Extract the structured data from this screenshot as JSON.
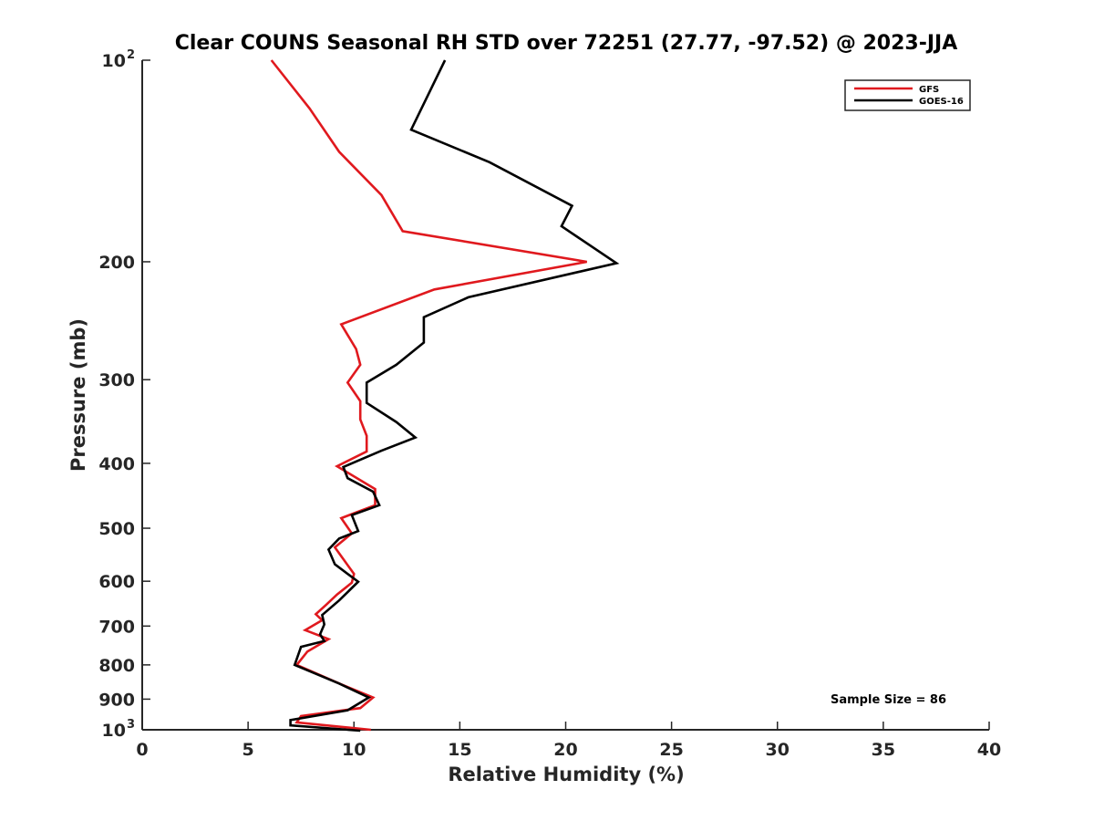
{
  "chart_data": {
    "type": "line",
    "orientation": "profile",
    "title": "Clear COUNS Seasonal RH STD over 72251 (27.77, -97.52) @ 2023-JJA",
    "xlabel": "Relative Humidity (%)",
    "ylabel": "Pressure (mb)",
    "xlim": [
      0,
      40
    ],
    "ylim": [
      100,
      1000
    ],
    "yscale": "log",
    "yreverse": true,
    "x_ticks": [
      0,
      5,
      10,
      15,
      20,
      25,
      30,
      35,
      40
    ],
    "y_ticks": [
      {
        "value": 100,
        "label": "10",
        "sup": "2"
      },
      {
        "value": 200,
        "label": "200",
        "sup": ""
      },
      {
        "value": 300,
        "label": "300",
        "sup": ""
      },
      {
        "value": 400,
        "label": "400",
        "sup": ""
      },
      {
        "value": 500,
        "label": "500",
        "sup": ""
      },
      {
        "value": 600,
        "label": "600",
        "sup": ""
      },
      {
        "value": 700,
        "label": "700",
        "sup": ""
      },
      {
        "value": 800,
        "label": "800",
        "sup": ""
      },
      {
        "value": 900,
        "label": "900",
        "sup": ""
      },
      {
        "value": 1000,
        "label": "10",
        "sup": "3"
      }
    ],
    "legend_position": "top-right",
    "series": [
      {
        "name": "GFS",
        "color": "#e0191e",
        "points": [
          [
            6.1,
            100
          ],
          [
            7.9,
            118
          ],
          [
            9.3,
            137
          ],
          [
            11.3,
            159
          ],
          [
            12.3,
            180
          ],
          [
            21.0,
            200
          ],
          [
            13.8,
            220
          ],
          [
            9.4,
            248
          ],
          [
            10.1,
            270
          ],
          [
            10.3,
            285
          ],
          [
            9.7,
            303
          ],
          [
            10.3,
            323
          ],
          [
            10.3,
            344
          ],
          [
            10.6,
            364
          ],
          [
            10.6,
            384
          ],
          [
            9.2,
            404
          ],
          [
            11.0,
            437
          ],
          [
            11.0,
            462
          ],
          [
            9.4,
            483
          ],
          [
            9.9,
            509
          ],
          [
            9.1,
            534
          ],
          [
            9.6,
            562
          ],
          [
            10.0,
            585
          ],
          [
            9.9,
            603
          ],
          [
            9.2,
            628
          ],
          [
            8.7,
            650
          ],
          [
            8.2,
            672
          ],
          [
            8.5,
            686
          ],
          [
            7.7,
            710
          ],
          [
            8.8,
            732
          ],
          [
            7.8,
            764
          ],
          [
            7.3,
            800
          ],
          [
            9.5,
            858
          ],
          [
            10.9,
            895
          ],
          [
            10.3,
            928
          ],
          [
            7.5,
            954
          ],
          [
            7.3,
            975
          ],
          [
            10.8,
            1000
          ]
        ]
      },
      {
        "name": "GOES-16",
        "color": "#000000",
        "points": [
          [
            14.3,
            100
          ],
          [
            12.7,
            127
          ],
          [
            16.4,
            142
          ],
          [
            20.3,
            165
          ],
          [
            19.8,
            177
          ],
          [
            22.4,
            201
          ],
          [
            15.4,
            226
          ],
          [
            13.3,
            242
          ],
          [
            13.3,
            264
          ],
          [
            12.0,
            285
          ],
          [
            10.6,
            303
          ],
          [
            10.6,
            325
          ],
          [
            12.0,
            347
          ],
          [
            12.9,
            366
          ],
          [
            11.3,
            383
          ],
          [
            9.5,
            405
          ],
          [
            9.7,
            421
          ],
          [
            10.9,
            441
          ],
          [
            11.2,
            462
          ],
          [
            9.9,
            478
          ],
          [
            10.2,
            505
          ],
          [
            9.3,
            518
          ],
          [
            8.8,
            538
          ],
          [
            9.1,
            566
          ],
          [
            10.2,
            601
          ],
          [
            9.3,
            641
          ],
          [
            8.5,
            674
          ],
          [
            8.6,
            696
          ],
          [
            8.4,
            720
          ],
          [
            8.6,
            737
          ],
          [
            7.5,
            752
          ],
          [
            7.2,
            800
          ],
          [
            9.3,
            853
          ],
          [
            10.7,
            895
          ],
          [
            9.7,
            935
          ],
          [
            7.0,
            967
          ],
          [
            7.0,
            985
          ],
          [
            10.3,
            1003
          ]
        ]
      }
    ],
    "annotation": "Sample Size = 86"
  }
}
